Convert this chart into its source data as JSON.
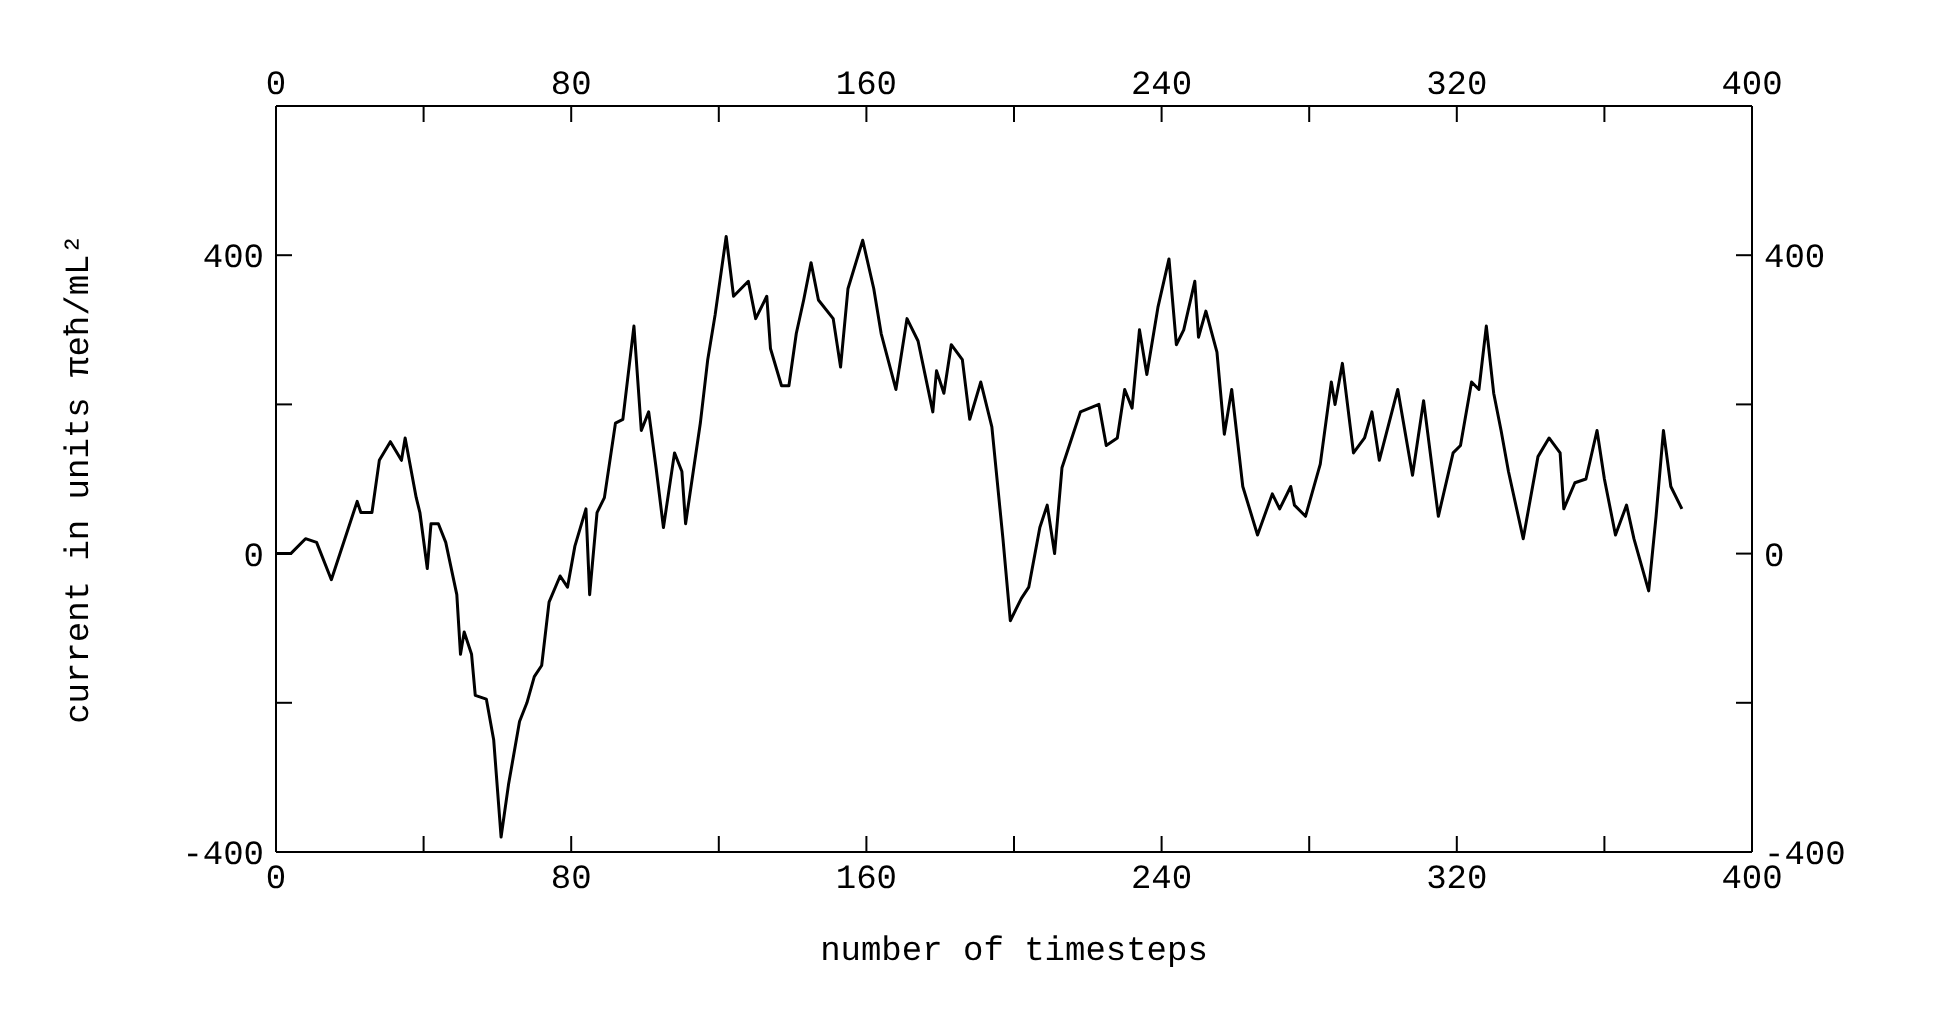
{
  "chart_data": {
    "type": "line",
    "xlabel": "number of timesteps",
    "ylabel": "current in units πeħ/mL²",
    "xlim": [
      0,
      400
    ],
    "xticks": [
      0,
      {
        "value": 40,
        "label": null
      },
      80,
      {
        "value": 120,
        "label": null
      },
      160,
      {
        "value": 200,
        "label": null
      },
      240,
      {
        "value": 280,
        "label": null
      },
      320,
      {
        "value": 360,
        "label": null
      },
      400
    ],
    "x2lim": [
      0,
      400
    ],
    "x2ticks": [
      0,
      {
        "value": 40,
        "label": null
      },
      80,
      {
        "value": 120,
        "label": null
      },
      160,
      {
        "value": 200,
        "label": null
      },
      240,
      {
        "value": 280,
        "label": null
      },
      320,
      {
        "value": 360,
        "label": null
      },
      400
    ],
    "ylim": [
      -400,
      600
    ],
    "yticks": [
      -400,
      {
        "value": -200,
        "label": null
      },
      0,
      {
        "value": 200,
        "label": null
      },
      400
    ],
    "y2lim": [
      -400,
      600
    ],
    "y2ticks": [
      -400,
      {
        "value": -200,
        "label": null
      },
      0,
      {
        "value": 200,
        "label": null
      },
      400
    ],
    "x": [
      0,
      4,
      8,
      11,
      15,
      19,
      22,
      23,
      26,
      28,
      31,
      34,
      35,
      38,
      39,
      41,
      42,
      44,
      46,
      49,
      50,
      51,
      53,
      54,
      57,
      59,
      61,
      63,
      66,
      68,
      70,
      72,
      74,
      77,
      79,
      81,
      84,
      85,
      87,
      89,
      92,
      94,
      97,
      99,
      101,
      103,
      105,
      108,
      110,
      111,
      115,
      117,
      119,
      122,
      124,
      128,
      130,
      133,
      134,
      137,
      139,
      141,
      143,
      145,
      147,
      151,
      153,
      155,
      159,
      162,
      164,
      168,
      171,
      174,
      178,
      179,
      181,
      183,
      186,
      188,
      191,
      194,
      197,
      199,
      202,
      204,
      207,
      209,
      211,
      213,
      216,
      218,
      223,
      225,
      228,
      230,
      232,
      234,
      236,
      239,
      242,
      244,
      246,
      249,
      250,
      252,
      255,
      257,
      259,
      262,
      266,
      270,
      272,
      275,
      276,
      279,
      283,
      286,
      287,
      289,
      292,
      295,
      297,
      299,
      304,
      308,
      311,
      315,
      319,
      321,
      324,
      326,
      328,
      330,
      332,
      334,
      338,
      342,
      345,
      348,
      349,
      352,
      355,
      358,
      360,
      363,
      366,
      368,
      372,
      374,
      376,
      378,
      381
    ],
    "series": [
      {
        "color": "#000000",
        "values": [
          0,
          0,
          20,
          15,
          -35,
          25,
          70,
          55,
          55,
          125,
          150,
          125,
          155,
          75,
          55,
          -20,
          40,
          40,
          15,
          -55,
          -135,
          -105,
          -135,
          -190,
          -195,
          -250,
          -380,
          -310,
          -225,
          -200,
          -165,
          -150,
          -65,
          -30,
          -45,
          10,
          60,
          -55,
          55,
          75,
          175,
          180,
          305,
          165,
          190,
          115,
          35,
          135,
          110,
          40,
          175,
          260,
          320,
          425,
          345,
          365,
          315,
          345,
          275,
          225,
          225,
          295,
          340,
          390,
          340,
          315,
          250,
          355,
          420,
          355,
          295,
          220,
          315,
          285,
          190,
          245,
          215,
          280,
          260,
          180,
          230,
          170,
          20,
          -90,
          -60,
          -45,
          35,
          65,
          0,
          115,
          160,
          190,
          200,
          145,
          155,
          220,
          195,
          300,
          240,
          330,
          395,
          280,
          300,
          365,
          290,
          325,
          270,
          160,
          220,
          90,
          25,
          80,
          60,
          90,
          65,
          50,
          120,
          230,
          200,
          255,
          135,
          155,
          190,
          125,
          220,
          105,
          205,
          50,
          135,
          145,
          230,
          220,
          305,
          215,
          165,
          110,
          20,
          130,
          155,
          135,
          60,
          95,
          100,
          165,
          100,
          25,
          65,
          20,
          -50,
          50,
          165,
          90,
          60
        ]
      }
    ]
  }
}
